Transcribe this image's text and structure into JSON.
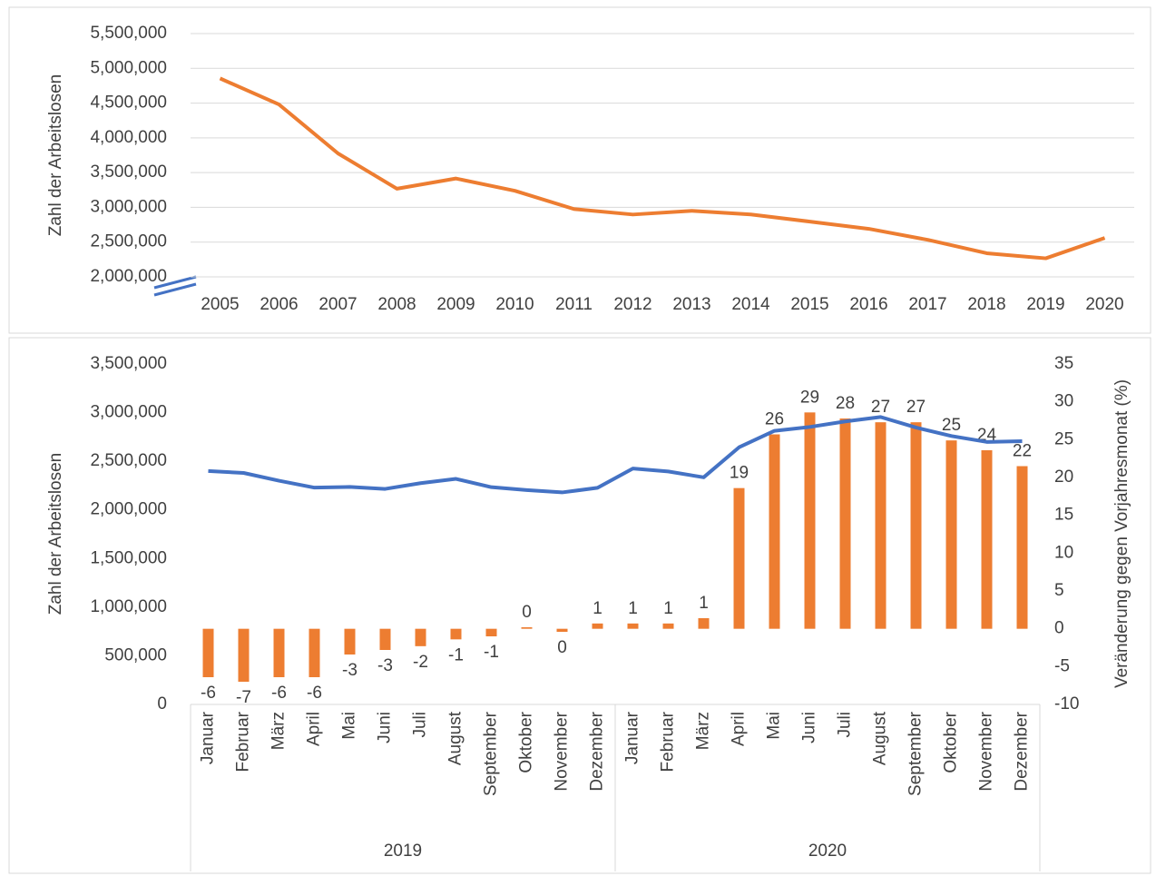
{
  "chart_data": [
    {
      "type": "line",
      "y_label": "Zahl der Arbeitslosen",
      "categories": [
        "2005",
        "2006",
        "2007",
        "2008",
        "2009",
        "2010",
        "2011",
        "2012",
        "2013",
        "2014",
        "2015",
        "2016",
        "2017",
        "2018",
        "2019",
        "2020"
      ],
      "series": [
        {
          "name": "Arbeitslose",
          "color": "#ed7d31",
          "values": [
            4855000,
            4480000,
            3776000,
            3268000,
            3415000,
            3238000,
            2976000,
            2897000,
            2950000,
            2898000,
            2795000,
            2691000,
            2533000,
            2340000,
            2267000,
            2560000
          ]
        }
      ],
      "ylim": [
        2000000,
        5500000
      ],
      "yticks": [
        {
          "value": 2000000,
          "label": "2,000,000"
        },
        {
          "value": 2500000,
          "label": "2,500,000"
        },
        {
          "value": 3000000,
          "label": "3,000,000"
        },
        {
          "value": 3500000,
          "label": "3,500,000"
        },
        {
          "value": 4000000,
          "label": "4,000,000"
        },
        {
          "value": 4500000,
          "label": "4,500,000"
        },
        {
          "value": 5000000,
          "label": "5,000,000"
        },
        {
          "value": 5500000,
          "label": "5,500,000"
        }
      ],
      "grid": true
    },
    {
      "type": "bar-line",
      "y_label": "Zahl der Arbeitslosen",
      "y2_label": "Veränderung gegen  Vorjahresmonat (%)",
      "categories": [
        "Januar",
        "Februar",
        "März",
        "April",
        "Mai",
        "Juni",
        "Juli",
        "August",
        "September",
        "Oktober",
        "November",
        "Dezember",
        "Januar",
        "Februar",
        "März",
        "April",
        "Mai",
        "Juni",
        "Juli",
        "August",
        "September",
        "Oktober",
        "November",
        "Dezember"
      ],
      "groups": [
        "2019",
        "2020"
      ],
      "series": [
        {
          "name": "Veränderung",
          "kind": "bar",
          "axis": "y2",
          "color": "#ed7d31",
          "values": [
            -6.4,
            -7.0,
            -6.4,
            -6.4,
            -3.4,
            -2.8,
            -2.3,
            -1.4,
            -1.0,
            0.2,
            -0.4,
            0.7,
            0.7,
            0.7,
            1.4,
            18.6,
            25.7,
            28.6,
            27.8,
            27.3,
            27.3,
            24.9,
            23.6,
            21.5
          ],
          "value_labels": [
            "-6",
            "-7",
            "-6",
            "-6",
            "-3",
            "-3",
            "-2",
            "-1",
            "-1",
            "0",
            "0",
            "1",
            "1",
            "1",
            "1",
            "19",
            "26",
            "29",
            "28",
            "27",
            "27",
            "25",
            "24",
            "22"
          ]
        },
        {
          "name": "Arbeitslose",
          "kind": "line",
          "axis": "y",
          "color": "#4472c4",
          "values": [
            2400000,
            2380000,
            2300000,
            2229000,
            2236000,
            2216000,
            2275000,
            2319000,
            2234000,
            2204000,
            2180000,
            2227000,
            2426000,
            2395000,
            2335000,
            2644000,
            2813000,
            2853000,
            2910000,
            2955000,
            2847000,
            2760000,
            2699000,
            2707000
          ]
        }
      ],
      "ylim": [
        0,
        3500000
      ],
      "yticks": [
        0,
        {
          "value": 500000,
          "label": "500,000"
        },
        {
          "value": 1000000,
          "label": "1,000,000"
        },
        {
          "value": 1500000,
          "label": "1,500,000"
        },
        {
          "value": 2000000,
          "label": "2,000,000"
        },
        {
          "value": 2500000,
          "label": "2,500,000"
        },
        {
          "value": 3000000,
          "label": "3,000,000"
        },
        {
          "value": 3500000,
          "label": "3,500,000"
        }
      ],
      "y2lim": [
        -10,
        35
      ],
      "y2ticks": [
        -10,
        -5,
        0,
        5,
        10,
        15,
        20,
        25,
        30,
        35
      ]
    }
  ]
}
